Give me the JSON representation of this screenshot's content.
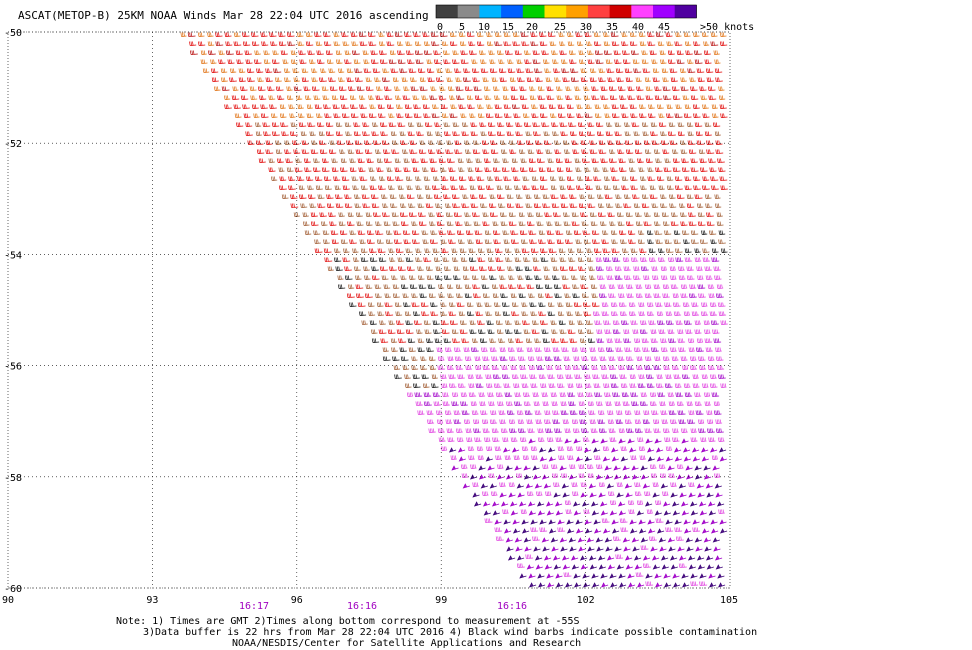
{
  "header": {
    "title": "ASCAT(METOP-B) 25KM NOAA Winds Mar 28 22:04 UTC 2016 ascending"
  },
  "legend": {
    "labels": [
      "0",
      "5",
      "10",
      "15",
      "20",
      "25",
      "30",
      "35",
      "40",
      "45",
      ">50 knots"
    ],
    "colors": [
      "#404040",
      "#8a8a8a",
      "#00b4ff",
      "#0060ff",
      "#00d000",
      "#ffe000",
      "#ffa000",
      "#ff4040",
      "#d00000",
      "#ff40ff",
      "#a000ff",
      "#5000a0"
    ]
  },
  "map": {
    "lat_labels": [
      "-50",
      "-52",
      "-54",
      "-56",
      "-58",
      "-60"
    ],
    "lon_labels": [
      "90",
      "93",
      "96",
      "99",
      "102",
      "105"
    ],
    "time_labels": [
      "16:17",
      "16:16",
      "16:16"
    ],
    "time_color": "#a000c0",
    "wind_colors": {
      "orange": "#e07010",
      "red": "#e00000",
      "darkred": "#b40000",
      "brown": "#a05a30",
      "black": "#101010",
      "magenta": "#e040e0",
      "violet": "#a000c8",
      "indigo": "#3c0078"
    }
  },
  "footer": {
    "note1": "Note: 1) Times are GMT 2)Times along bottom correspond to measurement at -55S",
    "note2": "3)Data buffer is 22 hrs from Mar 28 22:04 UTC 2016 4) Black wind barbs indicate possible contamination",
    "note3": "NOAA/NESDIS/Center for Satellite Applications and Research"
  }
}
